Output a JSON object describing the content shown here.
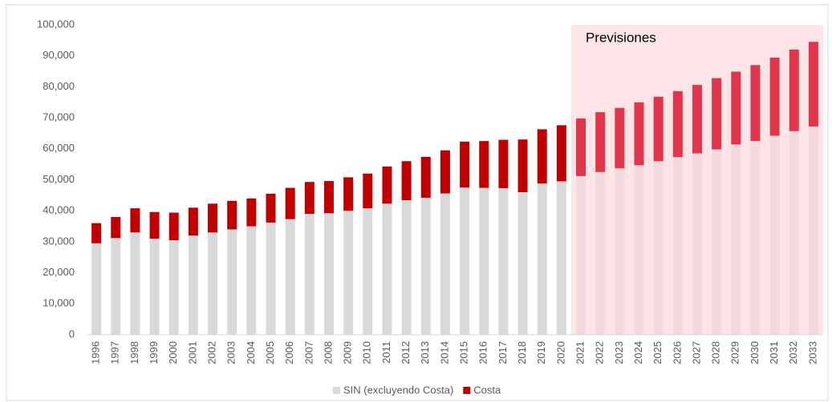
{
  "chart_data": {
    "type": "stacked_bar",
    "categories": [
      "1996",
      "1997",
      "1998",
      "1999",
      "2000",
      "2001",
      "2002",
      "2003",
      "2004",
      "2005",
      "2006",
      "2007",
      "2008",
      "2009",
      "2010",
      "2011",
      "2012",
      "2013",
      "2014",
      "2015",
      "2016",
      "2017",
      "2018",
      "2019",
      "2020",
      "2021",
      "2022",
      "2023",
      "2024",
      "2025",
      "2026",
      "2027",
      "2028",
      "2029",
      "2030",
      "2031",
      "2032",
      "2033"
    ],
    "series": [
      {
        "name": "SIN (excluyendo Costa)",
        "color": "#d9d9d9",
        "forecast_color": "#f3dadd",
        "values": [
          29500,
          31200,
          33000,
          31000,
          30500,
          32000,
          33000,
          34000,
          35000,
          36200,
          37300,
          39000,
          39200,
          40000,
          40800,
          42300,
          43400,
          44200,
          45600,
          47500,
          47400,
          47300,
          46000,
          48800,
          49500,
          51200,
          52500,
          53700,
          54700,
          56000,
          57300,
          58500,
          59800,
          61400,
          62500,
          64200,
          65700,
          67200
        ]
      },
      {
        "name": "Costa",
        "color": "#c00000",
        "forecast_color": "#e0354b",
        "values": [
          6500,
          6800,
          7800,
          8600,
          8900,
          9000,
          9300,
          9200,
          9000,
          9300,
          10100,
          10300,
          10400,
          10800,
          11200,
          12000,
          12600,
          13200,
          13900,
          14800,
          15100,
          15600,
          17000,
          17500,
          18100,
          18600,
          19300,
          19500,
          20300,
          20800,
          21300,
          22100,
          23000,
          23500,
          24500,
          25200,
          26300,
          27300
        ]
      }
    ],
    "forecast_start": "2021",
    "forecast_shade": "#fde4e7",
    "annotation": "Previsiones",
    "ylim": [
      0,
      100000
    ],
    "yticks": [
      0,
      {
        "value": 10000,
        "label": "10,000"
      },
      {
        "value": 20000,
        "label": "20,000"
      },
      {
        "value": 30000,
        "label": "30,000"
      },
      {
        "value": 40000,
        "label": "40,000"
      },
      {
        "value": 50000,
        "label": "50,000"
      },
      {
        "value": 60000,
        "label": "60,000"
      },
      {
        "value": 70000,
        "label": "70,000"
      },
      {
        "value": 80000,
        "label": "80,000"
      },
      {
        "value": 90000,
        "label": "90,000"
      },
      {
        "value": 100000,
        "label": "100,000"
      }
    ],
    "legend": "bottom"
  }
}
